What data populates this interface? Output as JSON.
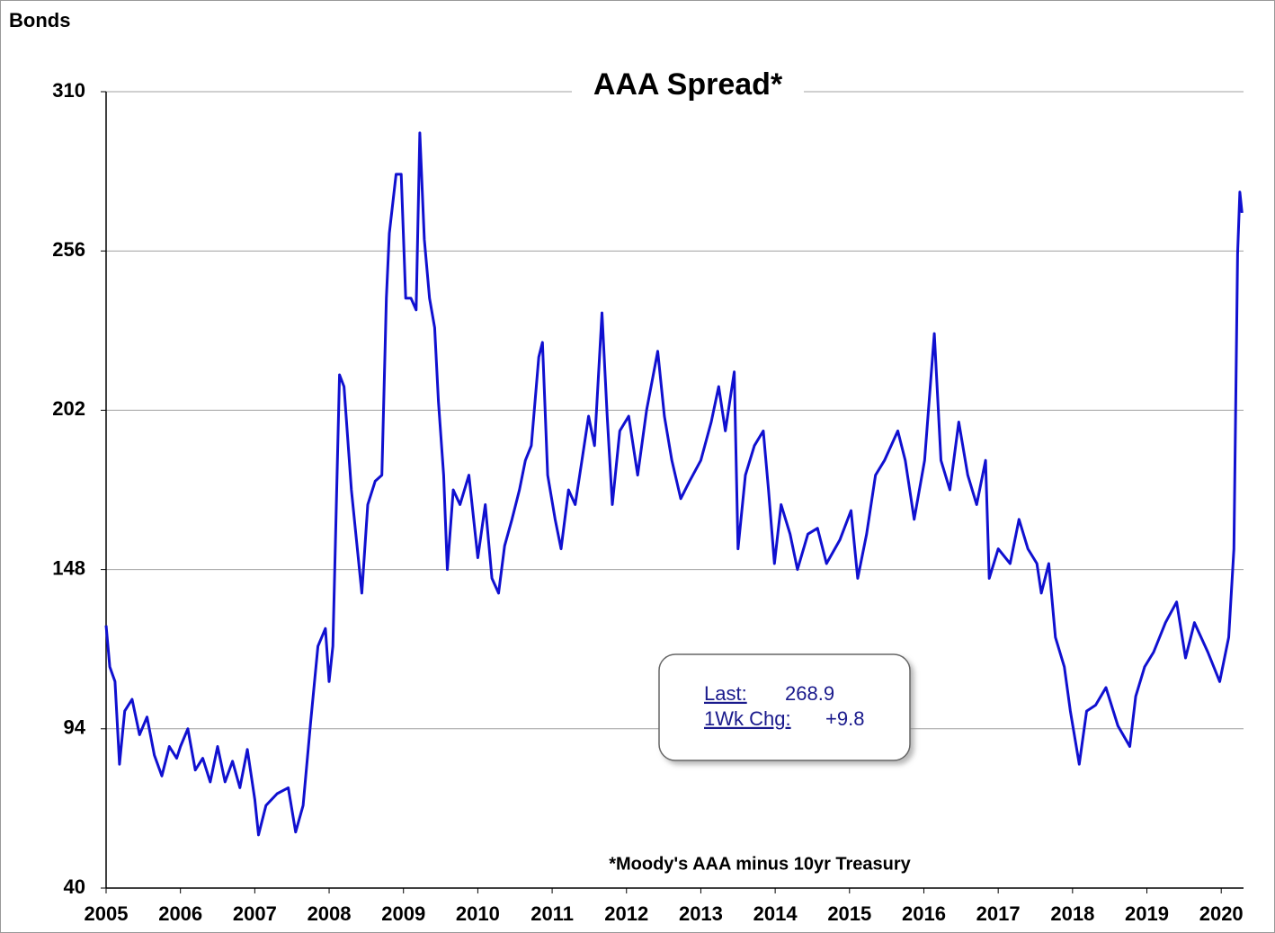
{
  "chart_data": {
    "type": "line",
    "header": "Bonds",
    "title": "AAA Spread*",
    "footnote": "*Moody's AAA minus 10yr Treasury",
    "stats": {
      "last_label": "Last:",
      "last_value": 268.9,
      "change_label": "1Wk Chg:",
      "change_value": "+9.8"
    },
    "color": "#1010d0",
    "grid": true,
    "x": [
      2005.0,
      2005.05,
      2005.12,
      2005.18,
      2005.25,
      2005.35,
      2005.45,
      2005.55,
      2005.65,
      2005.75,
      2005.85,
      2005.95,
      2006.0,
      2006.1,
      2006.2,
      2006.3,
      2006.4,
      2006.5,
      2006.6,
      2006.7,
      2006.8,
      2006.9,
      2007.0,
      2007.05,
      2007.15,
      2007.3,
      2007.45,
      2007.55,
      2007.65,
      2007.75,
      2007.85,
      2007.95,
      2008.0,
      2008.05,
      2008.14,
      2008.2,
      2008.3,
      2008.44,
      2008.52,
      2008.62,
      2008.71,
      2008.77,
      2008.81,
      2008.9,
      2008.97,
      2009.03,
      2009.1,
      2009.17,
      2009.22,
      2009.28,
      2009.35,
      2009.42,
      2009.47,
      2009.54,
      2009.59,
      2009.67,
      2009.76,
      2009.88,
      2010.0,
      2010.1,
      2010.19,
      2010.28,
      2010.36,
      2010.46,
      2010.56,
      2010.64,
      2010.72,
      2010.82,
      2010.87,
      2010.94,
      2011.04,
      2011.12,
      2011.22,
      2011.31,
      2011.4,
      2011.49,
      2011.57,
      2011.67,
      2011.74,
      2011.81,
      2011.91,
      2012.03,
      2012.15,
      2012.27,
      2012.42,
      2012.51,
      2012.61,
      2012.73,
      2012.85,
      2013.0,
      2013.14,
      2013.24,
      2013.33,
      2013.45,
      2013.5,
      2013.6,
      2013.72,
      2013.84,
      2013.91,
      2013.99,
      2014.08,
      2014.2,
      2014.3,
      2014.44,
      2014.57,
      2014.69,
      2014.87,
      2015.02,
      2015.11,
      2015.23,
      2015.35,
      2015.47,
      2015.65,
      2015.75,
      2015.87,
      2016.01,
      2016.14,
      2016.23,
      2016.35,
      2016.47,
      2016.59,
      2016.71,
      2016.83,
      2016.88,
      2017.0,
      2017.16,
      2017.28,
      2017.4,
      2017.52,
      2017.58,
      2017.68,
      2017.77,
      2017.89,
      2017.97,
      2018.09,
      2018.19,
      2018.31,
      2018.45,
      2018.61,
      2018.77,
      2018.85,
      2018.97,
      2019.09,
      2019.25,
      2019.4,
      2019.52,
      2019.64,
      2019.82,
      2019.98,
      2020.1,
      2020.17,
      2020.22,
      2020.25,
      2020.28
    ],
    "values": [
      129,
      115,
      110,
      82,
      100,
      104,
      92,
      98,
      85,
      78,
      88,
      84,
      88,
      94,
      80,
      84,
      76,
      88,
      76,
      83,
      74,
      87,
      70,
      58,
      68,
      72,
      74,
      59,
      68,
      96,
      122,
      128,
      110,
      122,
      214,
      210,
      175,
      140,
      170,
      178,
      180,
      240,
      262,
      282,
      282,
      240,
      240,
      236,
      296,
      260,
      240,
      230,
      205,
      180,
      148,
      175,
      170,
      180,
      152,
      170,
      145,
      140,
      156,
      165,
      175,
      185,
      190,
      220,
      225,
      180,
      165,
      155,
      175,
      170,
      185,
      200,
      190,
      235,
      200,
      170,
      195,
      200,
      180,
      202,
      222,
      200,
      185,
      172,
      178,
      185,
      198,
      210,
      195,
      215,
      155,
      180,
      190,
      195,
      175,
      150,
      170,
      160,
      148,
      160,
      162,
      150,
      158,
      168,
      145,
      160,
      180,
      185,
      195,
      185,
      165,
      185,
      228,
      185,
      175,
      198,
      180,
      170,
      185,
      145,
      155,
      150,
      165,
      155,
      150,
      140,
      150,
      125,
      115,
      100,
      82,
      100,
      102,
      108,
      95,
      88,
      105,
      115,
      120,
      130,
      137,
      118,
      130,
      120,
      110,
      125,
      155,
      255,
      276,
      268.9
    ],
    "xlim": [
      2005,
      2020.3
    ],
    "xticks": [
      2005,
      2006,
      2007,
      2008,
      2009,
      2010,
      2011,
      2012,
      2013,
      2014,
      2015,
      2016,
      2017,
      2018,
      2019,
      2020
    ],
    "ylim": [
      40,
      310
    ],
    "yticks": [
      40,
      94,
      148,
      202,
      256,
      310
    ]
  }
}
